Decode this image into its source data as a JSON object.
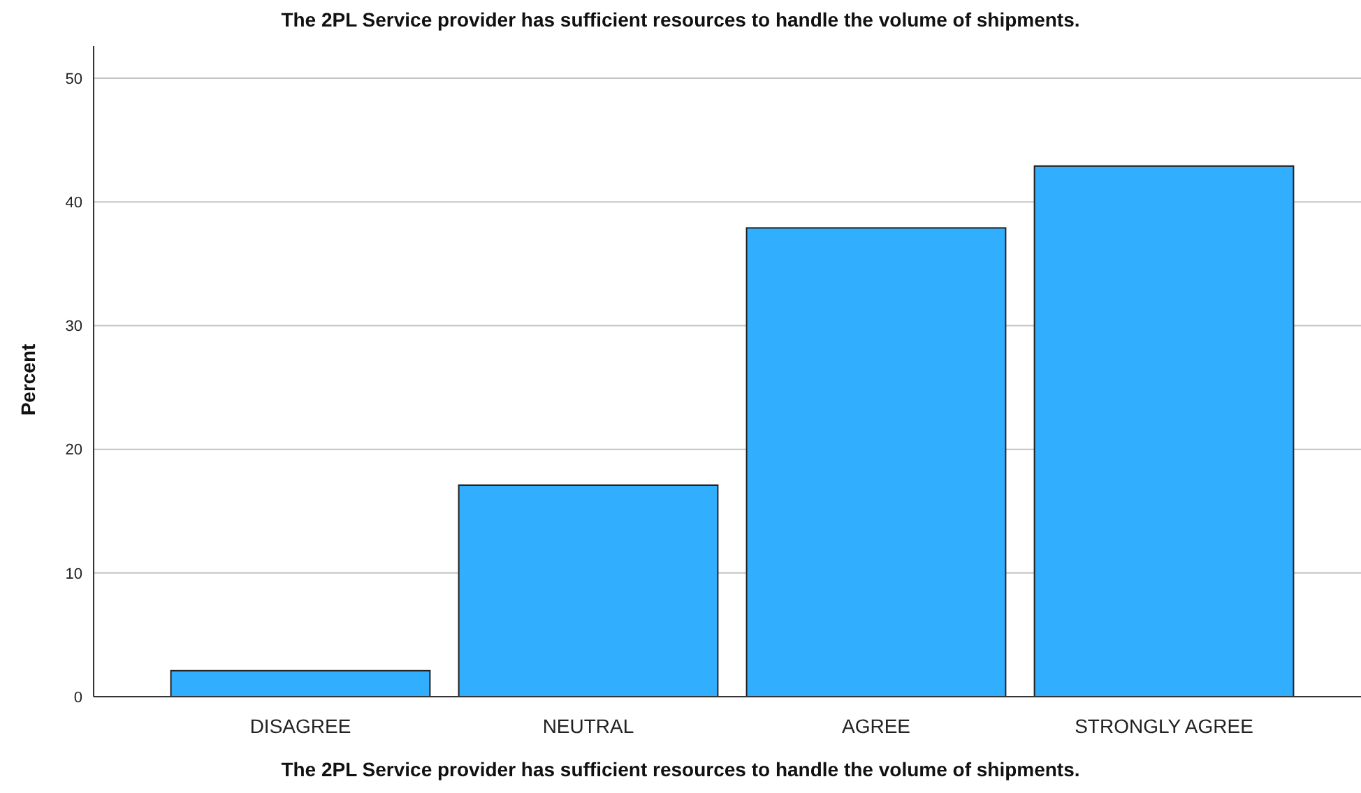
{
  "chart_data": {
    "type": "bar",
    "title": "The 2PL Service provider has sufficient resources to handle the  volume of shipments.",
    "xlabel": "The 2PL Service provider has sufficient resources to handle the  volume of shipments.",
    "ylabel": "Percent",
    "categories": [
      "DISAGREE",
      "NEUTRAL",
      "AGREE",
      "STRONGLY AGREE"
    ],
    "values": [
      2.1,
      17.1,
      37.9,
      42.9
    ],
    "color": "#31aefe",
    "ylim": [
      0,
      52.6
    ],
    "yticks": [
      0,
      10,
      20,
      30,
      40,
      50
    ],
    "grid": "y"
  }
}
